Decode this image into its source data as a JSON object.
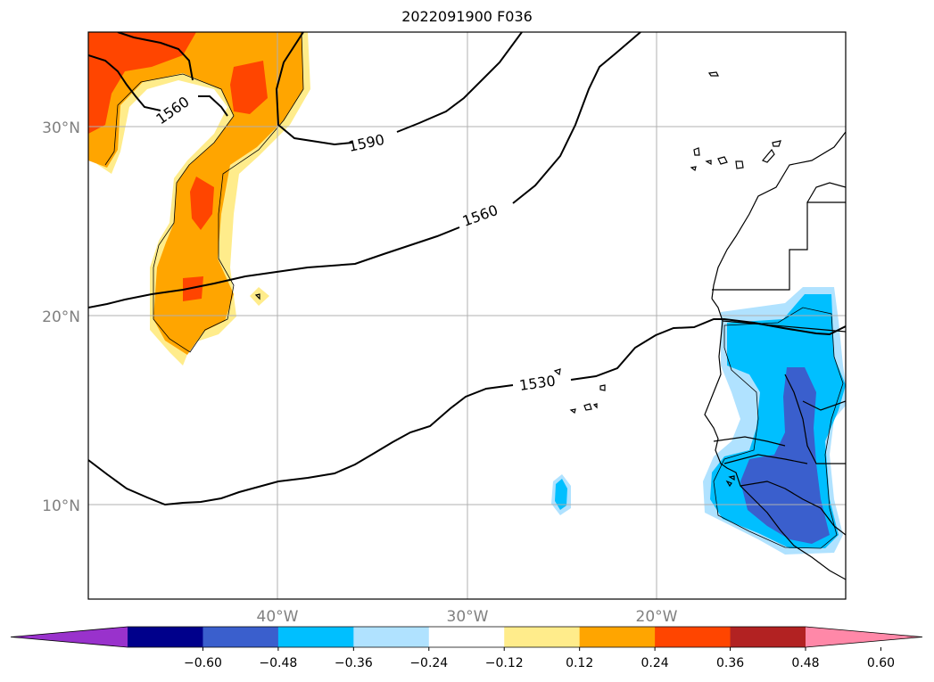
{
  "title": "2022091900 F036",
  "gridlines": {
    "longitudes": [
      {
        "value": -40,
        "label": "40°W"
      },
      {
        "value": -30,
        "label": "30°W"
      },
      {
        "value": -20,
        "label": "20°W"
      }
    ],
    "latitudes": [
      {
        "value": 30,
        "label": "30°N"
      },
      {
        "value": 20,
        "label": "20°N"
      },
      {
        "value": 10,
        "label": "10°N"
      }
    ]
  },
  "contour_labels": [
    {
      "text": "1560",
      "lon": -45.0,
      "lat": 31.0,
      "angle": -35
    },
    {
      "text": "1590",
      "lon": -34.8,
      "lat": 29.0,
      "angle": -12
    },
    {
      "text": "1560",
      "lon": -29.0,
      "lat": 24.8,
      "angle": -20
    },
    {
      "text": "1530",
      "lon": -26.2,
      "lat": 16.4,
      "angle": -8
    }
  ],
  "colorbar": {
    "colors": [
      "#9932CC",
      "#00008B",
      "#3A5FCD",
      "#00BFFF",
      "#B0E2FF",
      "#FFFFFF",
      "#FFEC8B",
      "#FFA500",
      "#FF4500",
      "#B22222",
      "#FF88A8"
    ],
    "ticks": [
      "−0.60",
      "−0.48",
      "−0.36",
      "−0.24",
      "−0.12",
      "0.12",
      "0.24",
      "0.36",
      "0.48",
      "0.60"
    ]
  },
  "colors": {
    "gridline": "#b0b0b0",
    "contour": "#000000",
    "coast": "#000000"
  }
}
